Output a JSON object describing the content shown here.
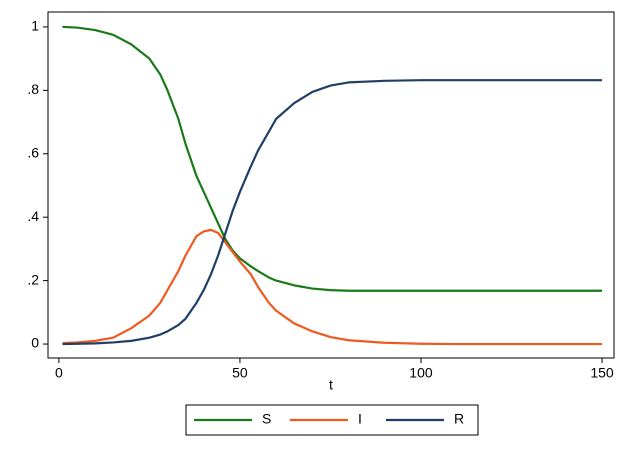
{
  "chart_data": {
    "type": "line",
    "x_label": "t",
    "x": [
      1,
      5,
      10,
      15,
      20,
      25,
      28,
      30,
      33,
      35,
      38,
      40,
      42,
      44,
      46,
      48,
      50,
      53,
      55,
      58,
      60,
      65,
      70,
      75,
      80,
      90,
      100,
      110,
      120,
      130,
      140,
      150
    ],
    "series": [
      {
        "name": "S",
        "color": "#1a7a1a",
        "values": [
          1.0,
          0.998,
          0.99,
          0.975,
          0.945,
          0.9,
          0.85,
          0.8,
          0.71,
          0.63,
          0.53,
          0.48,
          0.43,
          0.38,
          0.33,
          0.295,
          0.27,
          0.245,
          0.23,
          0.21,
          0.2,
          0.185,
          0.175,
          0.17,
          0.168,
          0.168,
          0.168,
          0.168,
          0.168,
          0.168,
          0.168,
          0.168
        ]
      },
      {
        "name": "I",
        "color": "#f05a1e",
        "values": [
          0.003,
          0.005,
          0.01,
          0.02,
          0.05,
          0.09,
          0.13,
          0.17,
          0.23,
          0.28,
          0.34,
          0.355,
          0.36,
          0.35,
          0.32,
          0.29,
          0.26,
          0.22,
          0.18,
          0.13,
          0.105,
          0.065,
          0.04,
          0.022,
          0.012,
          0.004,
          0.001,
          0,
          0,
          0,
          0,
          0
        ]
      },
      {
        "name": "R",
        "color": "#1f3f66",
        "values": [
          0,
          0.001,
          0.002,
          0.005,
          0.01,
          0.02,
          0.03,
          0.04,
          0.06,
          0.08,
          0.13,
          0.17,
          0.22,
          0.28,
          0.35,
          0.42,
          0.48,
          0.56,
          0.61,
          0.67,
          0.71,
          0.76,
          0.795,
          0.815,
          0.825,
          0.83,
          0.832,
          0.832,
          0.832,
          0.832,
          0.832,
          0.832
        ]
      }
    ],
    "xlim": [
      -3,
      153.3
    ],
    "ylim": [
      -0.044,
      1.047
    ],
    "xticks": [
      0,
      50,
      100,
      150
    ],
    "yticks": [
      0,
      {
        "value": 0.2,
        "label": ".2"
      },
      {
        "value": 0.4,
        "label": ".4"
      },
      {
        "value": 0.6,
        "label": ".6"
      },
      {
        "value": 0.8,
        "label": ".8"
      },
      1
    ],
    "grid": false,
    "legend": "bottom"
  }
}
